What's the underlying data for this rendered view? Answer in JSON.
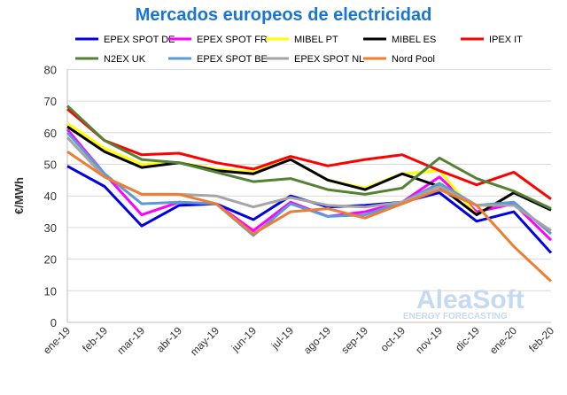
{
  "chart_data": {
    "type": "line",
    "title": "Mercados europeos de electricidad",
    "ylabel": "€/MWh",
    "xlabel": "",
    "ylim": [
      0,
      80
    ],
    "yticks": [
      0,
      10,
      20,
      30,
      40,
      50,
      60,
      70,
      80
    ],
    "grid": true,
    "legend": "top",
    "categories": [
      "ene-19",
      "feb-19",
      "mar-19",
      "abr-19",
      "may-19",
      "jun-19",
      "jul-19",
      "ago-19",
      "sep-19",
      "oct-19",
      "nov-19",
      "dic-19",
      "ene-20",
      "feb-20"
    ],
    "series": [
      {
        "name": "EPEX SPOT DE",
        "color": "#0000e6",
        "values": [
          49.4,
          43,
          30.5,
          37,
          37.5,
          32.5,
          40,
          36.5,
          37,
          38,
          41,
          32,
          35,
          22
        ]
      },
      {
        "name": "EPEX SPOT FR",
        "color": "#ff00ff",
        "values": [
          61,
          47,
          34,
          38,
          37.5,
          29,
          38,
          33.5,
          35,
          38,
          46,
          35,
          37.5,
          26
        ]
      },
      {
        "name": "MIBEL PT",
        "color": "#ffff00",
        "values": [
          63,
          55,
          50,
          50.5,
          48.5,
          47.5,
          51.5,
          45,
          42.5,
          47,
          48,
          34,
          41,
          36
        ]
      },
      {
        "name": "MIBEL ES",
        "color": "#000000",
        "values": [
          61.9,
          54,
          49,
          50.5,
          48,
          47,
          51.5,
          45,
          42,
          47,
          43,
          34,
          41,
          35.5
        ]
      },
      {
        "name": "IPEX IT",
        "color": "#ff0000",
        "values": [
          67.5,
          57.5,
          53,
          53.5,
          50.5,
          48.5,
          52.5,
          49.5,
          51.5,
          53,
          48,
          43.5,
          47.5,
          39
        ]
      },
      {
        "name": "N2EX UK",
        "color": "#548235",
        "values": [
          68.5,
          57.5,
          51.5,
          50.5,
          47.5,
          44.5,
          45.5,
          42,
          40.5,
          42.5,
          52,
          45.5,
          41.5,
          36
        ]
      },
      {
        "name": "EPEX SPOT BE",
        "color": "#5b9bd5",
        "values": [
          60,
          47,
          37.5,
          38,
          37.5,
          27.5,
          37.5,
          33.5,
          34,
          38,
          44,
          37,
          38,
          28
        ]
      },
      {
        "name": "EPEX SPOT NL",
        "color": "#a5a5a5",
        "values": [
          58.5,
          46,
          40.5,
          40.5,
          40,
          36.5,
          39.5,
          37,
          36.5,
          38,
          43,
          37,
          37,
          29
        ]
      },
      {
        "name": "Nord Pool",
        "color": "#ed7d31",
        "values": [
          54,
          46,
          40.5,
          40.5,
          37.5,
          28,
          35,
          36,
          33,
          37.5,
          42,
          37,
          24,
          13
        ]
      }
    ]
  },
  "watermark": {
    "brand": "AleaSoft",
    "tagline": "ENERGY FORECASTING",
    "color": "#c5d9f0"
  }
}
